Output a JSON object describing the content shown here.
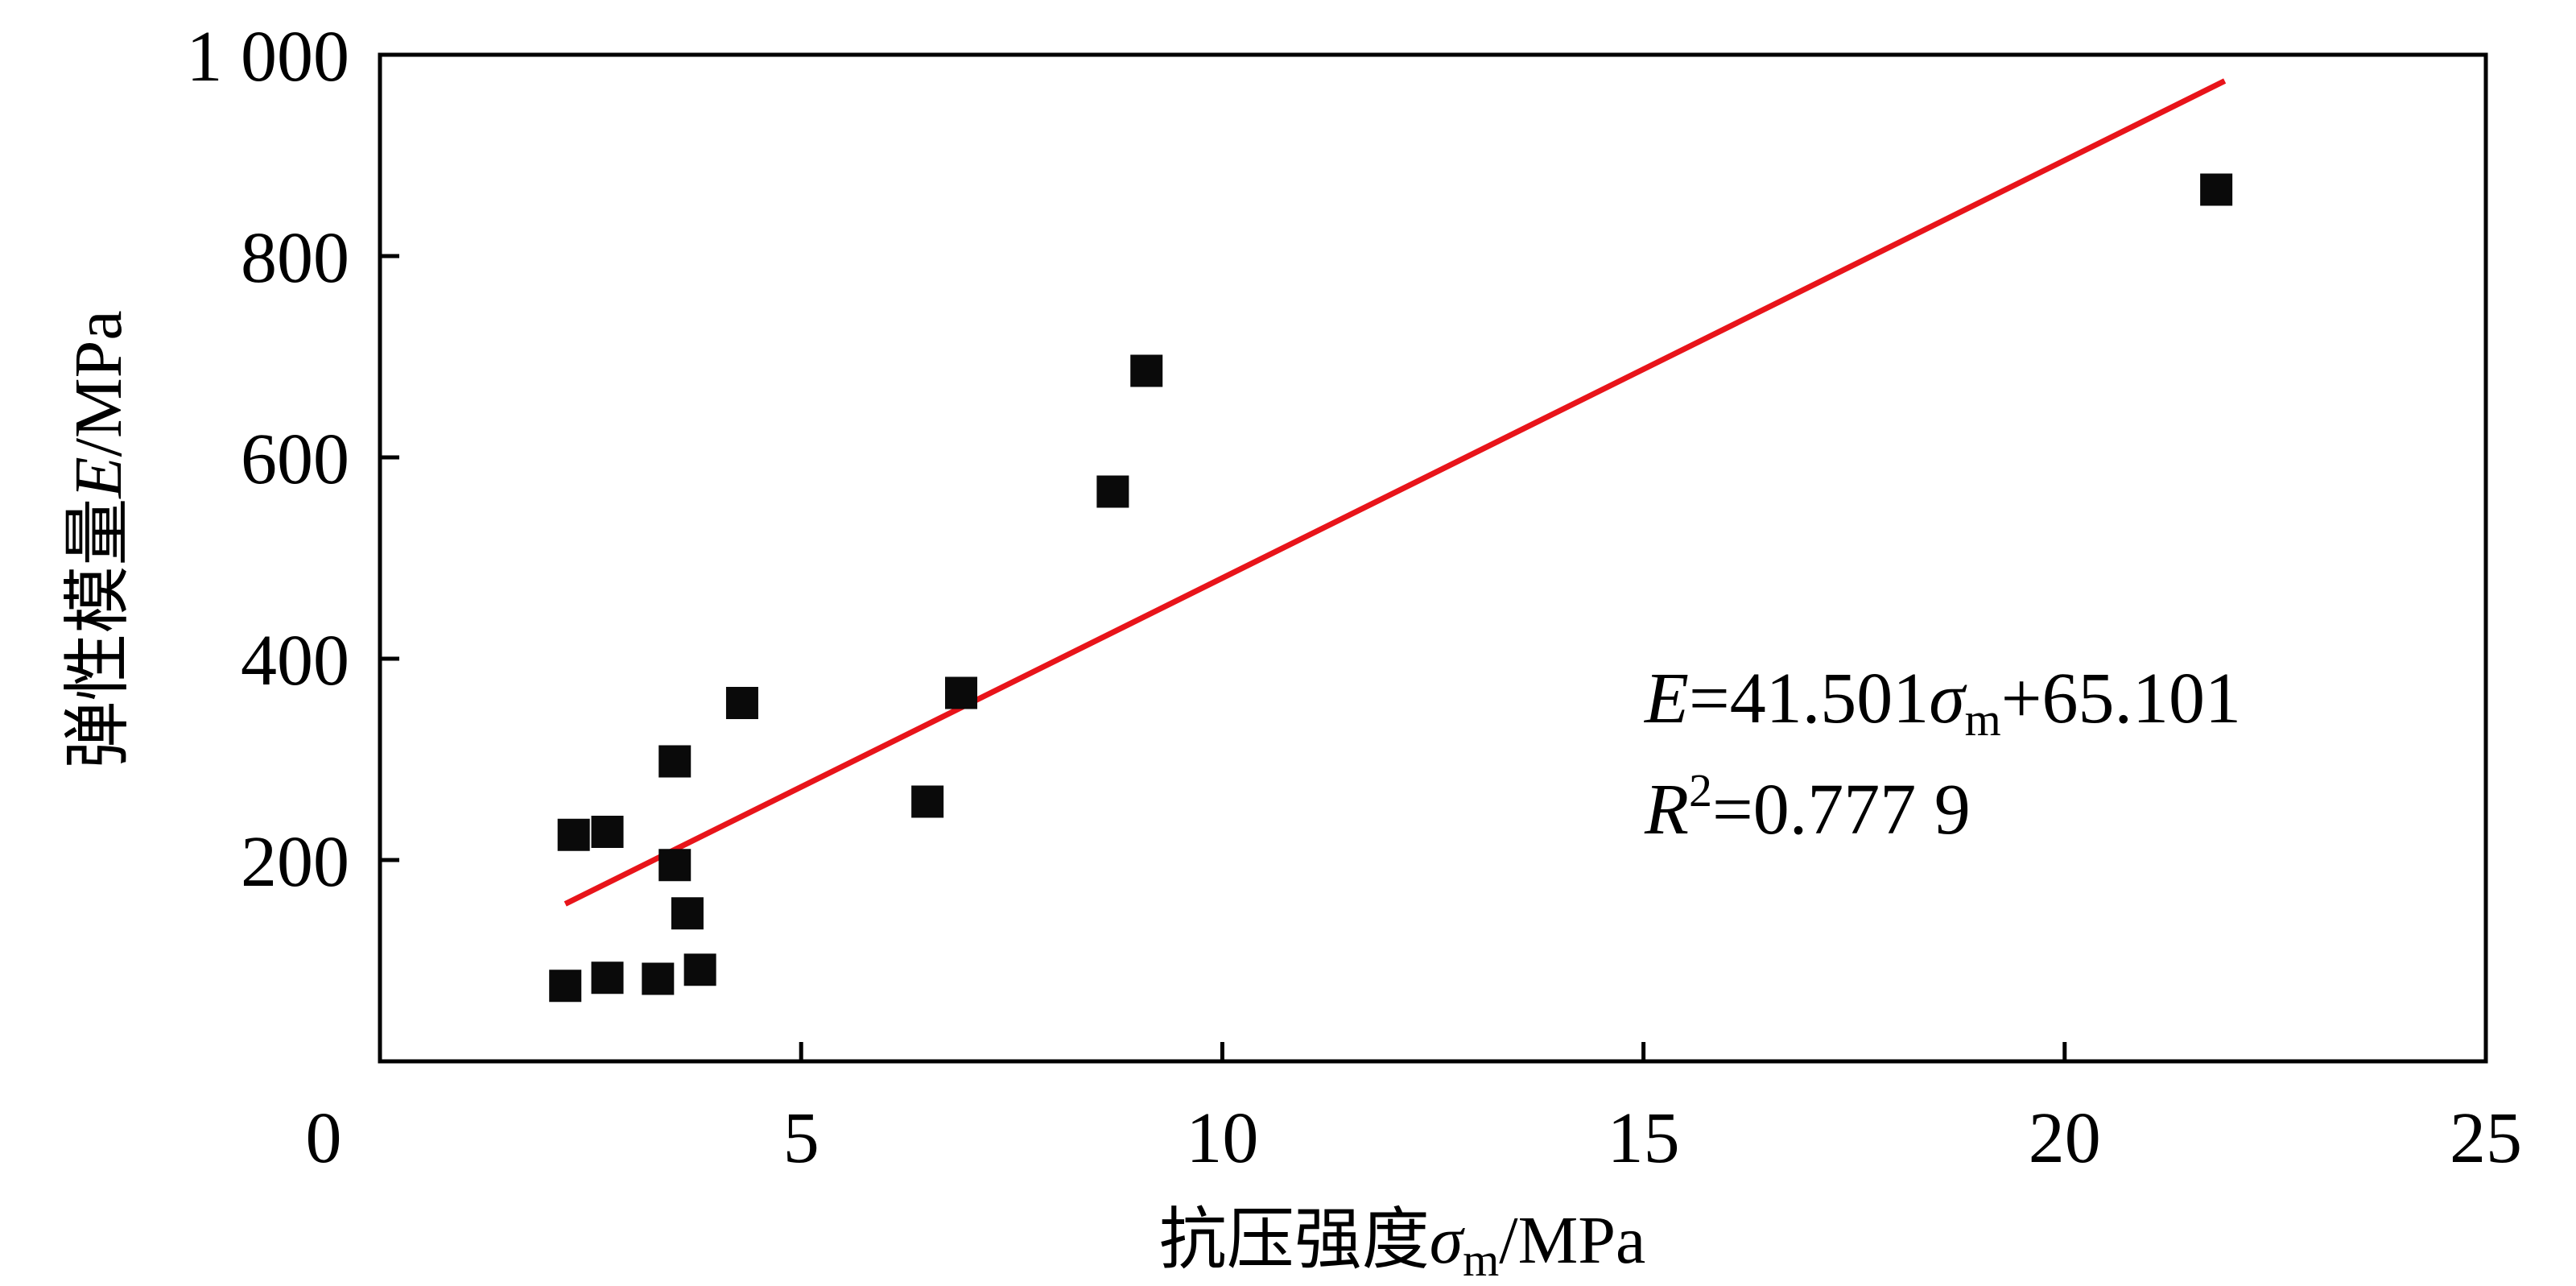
{
  "chart_data": {
    "type": "scatter",
    "xlabel": {
      "prefix": "抗压强度",
      "symbol": "σ",
      "subscript": "m",
      "unit": "/MPa"
    },
    "ylabel": {
      "prefix": "弹性模量",
      "symbol": "E",
      "unit": "/MPa"
    },
    "xlim": [
      0,
      25
    ],
    "ylim": [
      0,
      1000
    ],
    "x_ticks": [
      0,
      5,
      10,
      15,
      20,
      25
    ],
    "x_tick_labels": [
      "0",
      "5",
      "10",
      "15",
      "20",
      "25"
    ],
    "y_ticks": [
      200,
      400,
      600,
      800,
      1000
    ],
    "y_tick_labels": [
      "200",
      "400",
      "600",
      "800",
      "1 000"
    ],
    "grid": false,
    "marker": "square",
    "marker_color": "#0a0a0a",
    "line_color": "#e8141a",
    "points": [
      {
        "x": 2.2,
        "y": 75
      },
      {
        "x": 2.3,
        "y": 225
      },
      {
        "x": 2.7,
        "y": 228
      },
      {
        "x": 2.7,
        "y": 83
      },
      {
        "x": 3.3,
        "y": 82
      },
      {
        "x": 3.5,
        "y": 298
      },
      {
        "x": 3.5,
        "y": 195
      },
      {
        "x": 3.65,
        "y": 147
      },
      {
        "x": 3.8,
        "y": 91
      },
      {
        "x": 4.3,
        "y": 356
      },
      {
        "x": 6.5,
        "y": 258
      },
      {
        "x": 6.9,
        "y": 366
      },
      {
        "x": 8.7,
        "y": 566
      },
      {
        "x": 9.1,
        "y": 686
      },
      {
        "x": 21.8,
        "y": 866
      }
    ],
    "fit_line": {
      "slope": 41.501,
      "intercept": 65.101,
      "x_range": [
        2.2,
        21.9
      ]
    },
    "annotation": {
      "line1": {
        "lhs": "E",
        "eq": "=41.501",
        "sym": "σ",
        "sub": "m",
        "tail": "+65.101"
      },
      "line2": {
        "lhs": "R",
        "sup": "2",
        "tail": "=0.777 9"
      }
    }
  }
}
